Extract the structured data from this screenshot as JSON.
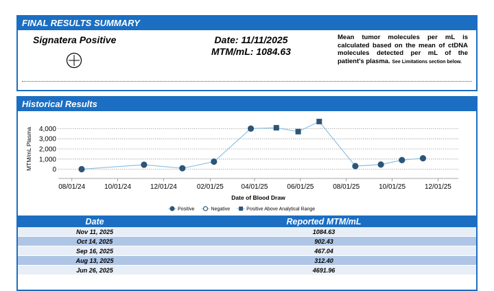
{
  "summary": {
    "title": "FINAL RESULTS SUMMARY",
    "result": "Signatera Positive",
    "date": "Date: 11/11/2025",
    "mtm": "MTM/mL: 1084.63",
    "note": "Mean tumor molecules per mL is calculated based on the mean of ctDNA molecules detected per mL of the patient's plasma.",
    "note_small": "See Limitations section below."
  },
  "historical": {
    "title": "Historical Results"
  },
  "chart_data": {
    "type": "line",
    "x_label": "Date of Blood Draw",
    "y_label": "MTM/mL Plasma",
    "line_color": "#8cc0e4",
    "grid": true,
    "x": [
      "2024-08-14",
      "2024-11-05",
      "2024-12-26",
      "2025-02-06",
      "2025-03-27",
      "2025-04-30",
      "2025-05-29",
      "2025-06-26",
      "2025-08-13",
      "2025-09-16",
      "2025-10-14",
      "2025-11-11"
    ],
    "series": [
      {
        "name": "Positive",
        "color": "#2d5577",
        "marker": "circle",
        "values": [
          10,
          450,
          100,
          750,
          4000,
          null,
          null,
          null,
          312.4,
          467.04,
          902.43,
          1084.63
        ]
      },
      {
        "name": "Negative",
        "color": "#2d5577",
        "marker": "open-circle",
        "values": [
          null,
          null,
          null,
          null,
          null,
          null,
          null,
          null,
          null,
          null,
          null,
          null
        ]
      },
      {
        "name": "Positive Above Analytical Range",
        "color": "#2d5577",
        "marker": "square",
        "values": [
          null,
          null,
          null,
          null,
          null,
          4080,
          3700,
          4691.96,
          null,
          null,
          null,
          null
        ]
      }
    ],
    "xlim": [
      "2024-07-14",
      "2025-12-28"
    ],
    "xticks": [
      {
        "value": "2024-08-01",
        "label": "08/01/24"
      },
      {
        "value": "2024-10-01",
        "label": "10/01/24"
      },
      {
        "value": "2024-12-01",
        "label": "12/01/24"
      },
      {
        "value": "2025-02-01",
        "label": "02/01/25"
      },
      {
        "value": "2025-04-01",
        "label": "04/01/25"
      },
      {
        "value": "2025-06-01",
        "label": "06/01/25"
      },
      {
        "value": "2025-08-01",
        "label": "08/01/25"
      },
      {
        "value": "2025-10-01",
        "label": "10/01/25"
      },
      {
        "value": "2025-12-01",
        "label": "12/01/25"
      }
    ],
    "ylim": [
      -900,
      4900
    ],
    "yticks": [
      0,
      {
        "value": 1000,
        "label": "1,000"
      },
      {
        "value": 2000,
        "label": "2,000"
      },
      {
        "value": 3000,
        "label": "3,000"
      },
      {
        "value": 4000,
        "label": "4,000"
      }
    ]
  },
  "table": {
    "header": [
      "Date",
      "Reported MTM/mL"
    ],
    "rows": [
      [
        "Nov 11, 2025",
        "1084.63"
      ],
      [
        "Oct 14, 2025",
        "902.43"
      ],
      [
        "Sep 16, 2025",
        "467.04"
      ],
      [
        "Aug 13, 2025",
        "312.40"
      ],
      [
        "Jun 26, 2025",
        "4691.96"
      ]
    ]
  }
}
